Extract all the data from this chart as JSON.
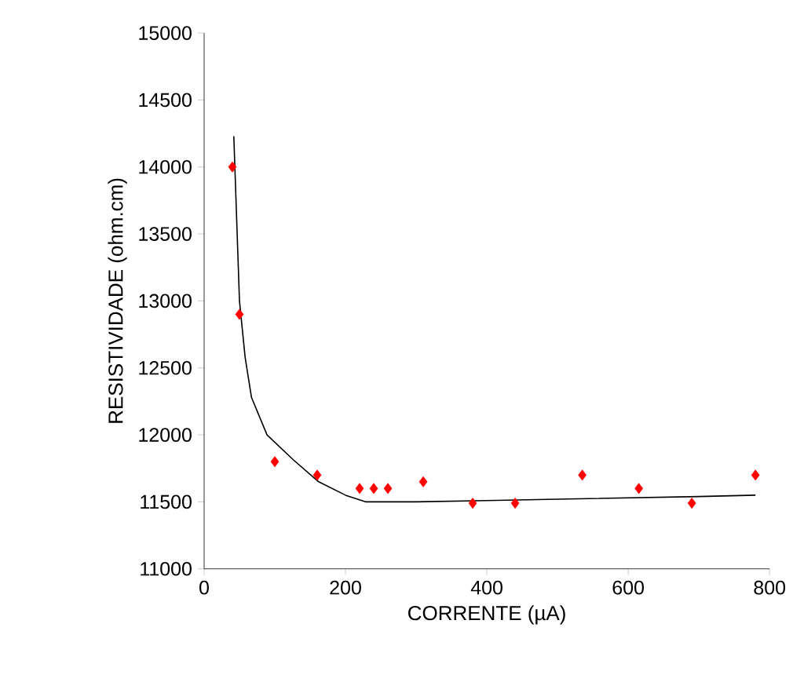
{
  "chart_data": {
    "type": "scatter",
    "xlabel": "CORRENTE (µA)",
    "ylabel": "RESISTIVIDADE (ohm.cm)",
    "xlim": [
      0,
      800
    ],
    "ylim": [
      11000,
      15000
    ],
    "xticks": [
      0,
      200,
      400,
      600,
      800
    ],
    "yticks": [
      11000,
      11500,
      12000,
      12500,
      13000,
      13500,
      14000,
      14500,
      15000
    ],
    "series": [
      {
        "color": "#ff0000",
        "marker": "diamond",
        "x": [
          40,
          50,
          100,
          160,
          220,
          240,
          260,
          310,
          380,
          440,
          535,
          615,
          690,
          780
        ],
        "values": [
          14000,
          12900,
          11800,
          11700,
          11600,
          11600,
          11600,
          11650,
          11490,
          11490,
          11700,
          11600,
          11490,
          11700
        ]
      },
      {
        "type": "line",
        "color": "#000000",
        "marker": "none",
        "line_style": "solid",
        "x": [
          42,
          50,
          58,
          67,
          89,
          127,
          162,
          200,
          229,
          300,
          400,
          500,
          600,
          700,
          780
        ],
        "values": [
          14230,
          13000,
          12580,
          12280,
          12000,
          11810,
          11650,
          11550,
          11500,
          11500,
          11510,
          11520,
          11530,
          11540,
          11550
        ]
      }
    ]
  }
}
